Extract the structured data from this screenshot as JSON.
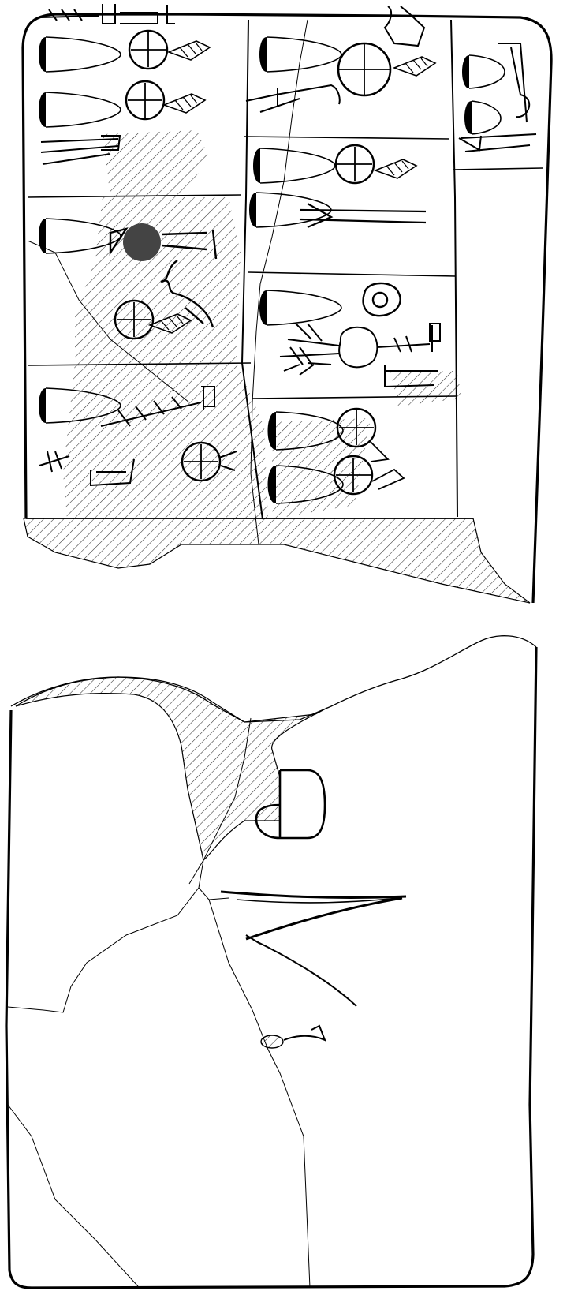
{
  "drawing": {
    "subject": "clay-tablet",
    "views": [
      "obverse",
      "reverse"
    ]
  },
  "palette": {
    "ink": "#000000",
    "paper": "#ffffff",
    "damage_hatch": "#333333",
    "seal_dot": "#444444"
  }
}
